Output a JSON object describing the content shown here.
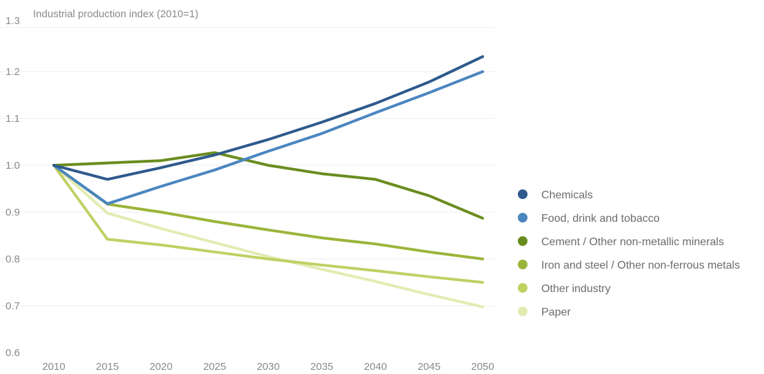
{
  "chart_data": {
    "type": "line",
    "ylabel": "Industrial production index (2010=1)",
    "xlabel": "",
    "x": [
      2010,
      2015,
      2020,
      2025,
      2030,
      2035,
      2040,
      2045,
      2050
    ],
    "x_ticks": [
      "2010",
      "2015",
      "2020",
      "2025",
      "2030",
      "2035",
      "2040",
      "2045",
      "2050"
    ],
    "y_ticks": [
      "1.3",
      "1.2",
      "1.1",
      "1.0",
      "0.9",
      "0.8",
      "0.7",
      "0.6"
    ],
    "ylim": [
      0.6,
      1.3
    ],
    "grid": true,
    "legend_position": "right",
    "series": [
      {
        "name": "Chemicals",
        "color": "#2e5a8c",
        "values": [
          1.0,
          0.97,
          0.995,
          1.022,
          1.055,
          1.092,
          1.132,
          1.178,
          1.232
        ]
      },
      {
        "name": "Food, drink and tobacco",
        "color": "#4a86c0",
        "values": [
          1.0,
          0.918,
          0.955,
          0.99,
          1.03,
          1.068,
          1.112,
          1.155,
          1.2
        ]
      },
      {
        "name": "Cement / Other non-metallic minerals",
        "color": "#6a8c1e",
        "values": [
          1.0,
          1.005,
          1.01,
          1.027,
          1.0,
          0.982,
          0.97,
          0.935,
          0.887
        ]
      },
      {
        "name": "Iron and steel / Other non-ferrous metals",
        "color": "#9bb43a",
        "values": [
          1.0,
          0.917,
          0.9,
          0.88,
          0.862,
          0.845,
          0.832,
          0.815,
          0.8
        ]
      },
      {
        "name": "Other industry",
        "color": "#bfd163",
        "values": [
          1.0,
          0.842,
          0.83,
          0.815,
          0.8,
          0.787,
          0.775,
          0.762,
          0.75
        ]
      },
      {
        "name": "Paper",
        "color": "#e3ebb2",
        "values": [
          1.0,
          0.898,
          0.865,
          0.835,
          0.805,
          0.778,
          0.752,
          0.724,
          0.698
        ]
      }
    ]
  }
}
